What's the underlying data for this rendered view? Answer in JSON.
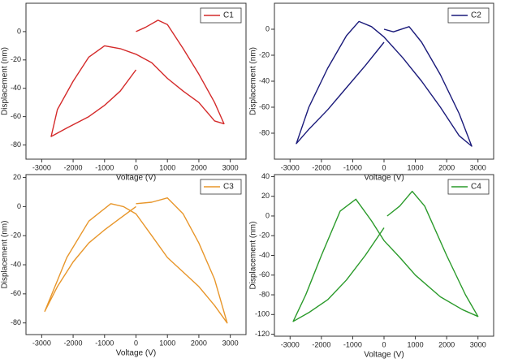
{
  "chart_data": [
    {
      "type": "line",
      "xlabel": "Voltage (V)",
      "ylabel": "Displacement (nm)",
      "legend": "top-right",
      "xlim": [
        -3500,
        3500
      ],
      "ylim": [
        -90,
        20
      ],
      "xticks": [
        -3000,
        -2000,
        -1000,
        0,
        1000,
        2000,
        3000
      ],
      "yticks": [
        0,
        -20,
        -40,
        -60,
        -80
      ],
      "x": [
        0,
        300,
        700,
        1000,
        1500,
        2000,
        2500,
        2800,
        2500,
        2000,
        1500,
        1000,
        500,
        0,
        -500,
        -1000,
        -1500,
        -2000,
        -2500,
        -2700,
        -2200,
        -1500,
        -1000,
        -500,
        0
      ],
      "series": [
        {
          "name": "C1",
          "color": "#d42a2a",
          "values": [
            0,
            3,
            8,
            5,
            -12,
            -30,
            -50,
            -65,
            -63,
            -50,
            -42,
            -33,
            -22,
            -16,
            -12,
            -10,
            -18,
            -35,
            -55,
            -74,
            -68,
            -60,
            -52,
            -42,
            -27
          ]
        }
      ]
    },
    {
      "type": "line",
      "xlabel": "Voltage (V)",
      "ylabel": "Displacement (nm)",
      "legend": "top-right",
      "xlim": [
        -3500,
        3500
      ],
      "ylim": [
        -100,
        20
      ],
      "xticks": [
        -3000,
        -2000,
        -1000,
        0,
        1000,
        2000,
        3000
      ],
      "yticks": [
        0,
        -20,
        -40,
        -60,
        -80
      ],
      "x": [
        0,
        300,
        800,
        1200,
        1800,
        2400,
        2800,
        2400,
        1800,
        1200,
        600,
        0,
        -400,
        -800,
        -1200,
        -1800,
        -2400,
        -2800,
        -2400,
        -1800,
        -1200,
        -600,
        0
      ],
      "series": [
        {
          "name": "C2",
          "color": "#1a1a7a",
          "values": [
            0,
            -2,
            2,
            -10,
            -35,
            -65,
            -90,
            -82,
            -60,
            -40,
            -22,
            -6,
            2,
            6,
            -5,
            -30,
            -60,
            -88,
            -77,
            -62,
            -45,
            -28,
            -10
          ]
        }
      ]
    },
    {
      "type": "line",
      "xlabel": "Voltage (V)",
      "ylabel": "Displacement (nm)",
      "legend": "top-right",
      "xlim": [
        -3500,
        3500
      ],
      "ylim": [
        -88,
        22
      ],
      "xticks": [
        -3000,
        -2000,
        -1000,
        0,
        1000,
        2000,
        3000
      ],
      "yticks": [
        20,
        0,
        -20,
        -40,
        -60,
        -80
      ],
      "x": [
        0,
        500,
        1000,
        1500,
        2000,
        2500,
        2900,
        2500,
        2000,
        1500,
        1000,
        500,
        0,
        -400,
        -800,
        -1500,
        -2200,
        -2900,
        -2500,
        -2000,
        -1500,
        -1000,
        -500,
        0
      ],
      "series": [
        {
          "name": "C3",
          "color": "#e8962a",
          "values": [
            2,
            3,
            6,
            -5,
            -25,
            -50,
            -80,
            -68,
            -55,
            -45,
            -35,
            -20,
            -5,
            0,
            2,
            -10,
            -35,
            -72,
            -55,
            -38,
            -25,
            -16,
            -8,
            0
          ]
        }
      ]
    },
    {
      "type": "line",
      "xlabel": "Voltage (V)",
      "ylabel": "Displacement (nm)",
      "legend": "top-right",
      "xlim": [
        -3500,
        3500
      ],
      "ylim": [
        -122,
        42
      ],
      "xticks": [
        -3000,
        -2000,
        -1000,
        0,
        1000,
        2000,
        3000
      ],
      "yticks": [
        40,
        20,
        0,
        -20,
        -40,
        -60,
        -80,
        -100,
        -120
      ],
      "x": [
        100,
        500,
        900,
        1300,
        2000,
        2600,
        3000,
        2500,
        1800,
        1000,
        500,
        0,
        -400,
        -900,
        -1400,
        -2000,
        -2500,
        -2900,
        -2400,
        -1800,
        -1200,
        -600,
        0
      ],
      "series": [
        {
          "name": "C4",
          "color": "#2a9a2a",
          "values": [
            0,
            10,
            25,
            10,
            -40,
            -80,
            -102,
            -95,
            -82,
            -60,
            -42,
            -25,
            -5,
            17,
            5,
            -40,
            -80,
            -107,
            -98,
            -85,
            -65,
            -40,
            -12
          ]
        }
      ]
    }
  ]
}
